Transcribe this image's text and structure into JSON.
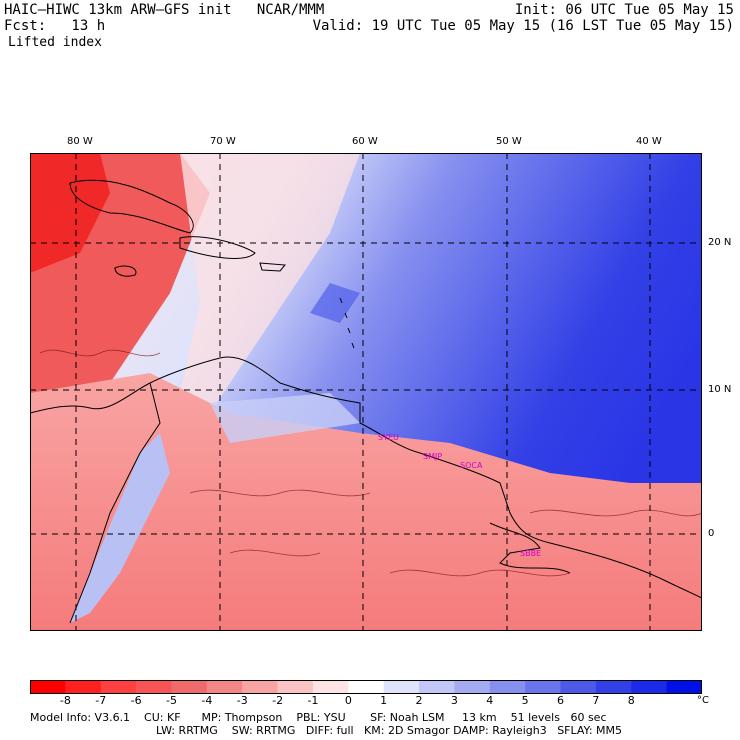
{
  "header": {
    "model_line": "HAIC–HIWC 13km ARW–GFS init   NCAR/MMM",
    "init_line": "Init: 06 UTC Tue 05 May 15",
    "fcst_line": "Fcst:   13 h",
    "valid_line": "Valid: 19 UTC Tue 05 May 15 (16 LST Tue 05 May 15)",
    "field_name": "Lifted index"
  },
  "map": {
    "lon_labels": [
      "80 W",
      "70 W",
      "60 W",
      "50 W",
      "40 W"
    ],
    "lat_labels": [
      "20 N",
      "10 N",
      "0"
    ],
    "stations": [
      "SYEU",
      "SMJP",
      "SOCA",
      "SBBE"
    ],
    "colors": {
      "land_positive": "#f04848",
      "ocean_negative": "#2040e0",
      "neutral": "#ffffff"
    }
  },
  "colorbar": {
    "labels": [
      "-8",
      "-7",
      "-6",
      "-5",
      "-4",
      "-3",
      "-2",
      "-1",
      "0",
      "1",
      "2",
      "3",
      "4",
      "5",
      "6",
      "7",
      "8"
    ],
    "unit": "°C",
    "colors": [
      "#ff0000",
      "#ff2020",
      "#ff4040",
      "#f75555",
      "#ef6b6b",
      "#f58686",
      "#f9a4a4",
      "#fbc4c4",
      "#fde3e3",
      "#ffffff",
      "#dfe3fb",
      "#c1c8f7",
      "#a3acf3",
      "#8690ef",
      "#6a74eb",
      "#4e59e8",
      "#3240e6",
      "#1a2ae6",
      "#0010e6"
    ]
  },
  "footer": {
    "line1": "Model Info: V3.6.1    CU: KF      MP: Thompson    PBL: YSU       SF: Noah LSM     13 km    51 levels   60 sec",
    "line2": "LW: RRTMG    SW: RRTMG   DIFF: full   KM: 2D Smagor DAMP: Rayleigh3   SFLAY: MM5"
  }
}
